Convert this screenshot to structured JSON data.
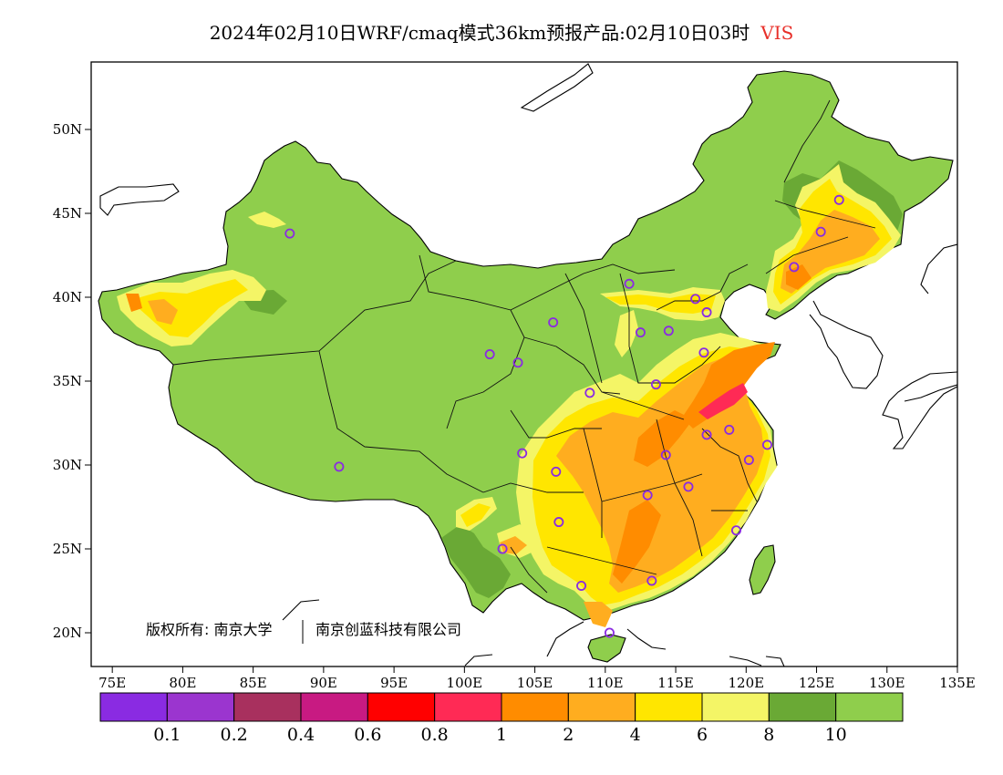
{
  "title": {
    "main": "2024年02月10日WRF/cmaq模式36km预报产品:02月10日03时",
    "variable": "VIS",
    "variable_color": "#e8302a"
  },
  "axes": {
    "lon_ticks": [
      "75E",
      "80E",
      "85E",
      "90E",
      "95E",
      "100E",
      "105E",
      "110E",
      "115E",
      "120E",
      "125E",
      "130E",
      "135E"
    ],
    "lat_ticks": [
      "20N",
      "25N",
      "30N",
      "35N",
      "40N",
      "45N",
      "50N"
    ]
  },
  "copyright": {
    "left": "版权所有: 南京大学",
    "right": "南京创蓝科技有限公司"
  },
  "legend": {
    "colors": [
      "#8a2be2",
      "#9b35cf",
      "#a8305e",
      "#c81a82",
      "#ff0000",
      "#ff2a55",
      "#ff8c00",
      "#ffad1f",
      "#ffe600",
      "#f4f566",
      "#6aa935",
      "#8fce4c"
    ],
    "labels": [
      "0.1",
      "0.2",
      "0.4",
      "0.6",
      "0.8",
      "1",
      "2",
      "4",
      "6",
      "8",
      "10"
    ]
  },
  "colors": {
    "land_green": "#8fce4c",
    "dark_green": "#6aa935",
    "light_yellow": "#f4f566",
    "yellow": "#ffe600",
    "light_orange": "#ffad1f",
    "orange": "#ff8c00",
    "red": "#ff2a55",
    "station": "#8a2be2"
  },
  "stations": [
    {
      "name": "station-urumqi",
      "lon": 87.6,
      "lat": 43.8
    },
    {
      "name": "station-lhasa",
      "lon": 91.1,
      "lat": 29.9
    },
    {
      "name": "station-xining",
      "lon": 101.8,
      "lat": 36.6
    },
    {
      "name": "station-lanzhou",
      "lon": 103.8,
      "lat": 36.1
    },
    {
      "name": "station-yinchuan",
      "lon": 106.3,
      "lat": 38.5
    },
    {
      "name": "station-hohhot",
      "lon": 111.7,
      "lat": 40.8
    },
    {
      "name": "station-taiyuan",
      "lon": 112.5,
      "lat": 37.9
    },
    {
      "name": "station-shijiazhuang",
      "lon": 114.5,
      "lat": 38.0
    },
    {
      "name": "station-beijing",
      "lon": 116.4,
      "lat": 39.9
    },
    {
      "name": "station-tianjin",
      "lon": 117.2,
      "lat": 39.1
    },
    {
      "name": "station-jinan",
      "lon": 117.0,
      "lat": 36.7
    },
    {
      "name": "station-zhengzhou",
      "lon": 113.6,
      "lat": 34.8
    },
    {
      "name": "station-xian",
      "lon": 108.9,
      "lat": 34.3
    },
    {
      "name": "station-chengdu",
      "lon": 104.1,
      "lat": 30.7
    },
    {
      "name": "station-chongqing",
      "lon": 106.5,
      "lat": 29.6
    },
    {
      "name": "station-wuhan",
      "lon": 114.3,
      "lat": 30.6
    },
    {
      "name": "station-hefei",
      "lon": 117.2,
      "lat": 31.8
    },
    {
      "name": "station-nanjing",
      "lon": 118.8,
      "lat": 32.1
    },
    {
      "name": "station-shanghai",
      "lon": 121.5,
      "lat": 31.2
    },
    {
      "name": "station-hangzhou",
      "lon": 120.2,
      "lat": 30.3
    },
    {
      "name": "station-changsha",
      "lon": 113.0,
      "lat": 28.2
    },
    {
      "name": "station-nanchang",
      "lon": 115.9,
      "lat": 28.7
    },
    {
      "name": "station-fuzhou",
      "lon": 119.3,
      "lat": 26.1
    },
    {
      "name": "station-guiyang",
      "lon": 106.7,
      "lat": 26.6
    },
    {
      "name": "station-kunming",
      "lon": 102.7,
      "lat": 25.0
    },
    {
      "name": "station-nanning",
      "lon": 108.3,
      "lat": 22.8
    },
    {
      "name": "station-guangzhou",
      "lon": 113.3,
      "lat": 23.1
    },
    {
      "name": "station-haikou",
      "lon": 110.3,
      "lat": 20.0
    },
    {
      "name": "station-shenyang",
      "lon": 123.4,
      "lat": 41.8
    },
    {
      "name": "station-changchun",
      "lon": 125.3,
      "lat": 43.9
    },
    {
      "name": "station-harbin",
      "lon": 126.6,
      "lat": 45.8
    }
  ]
}
